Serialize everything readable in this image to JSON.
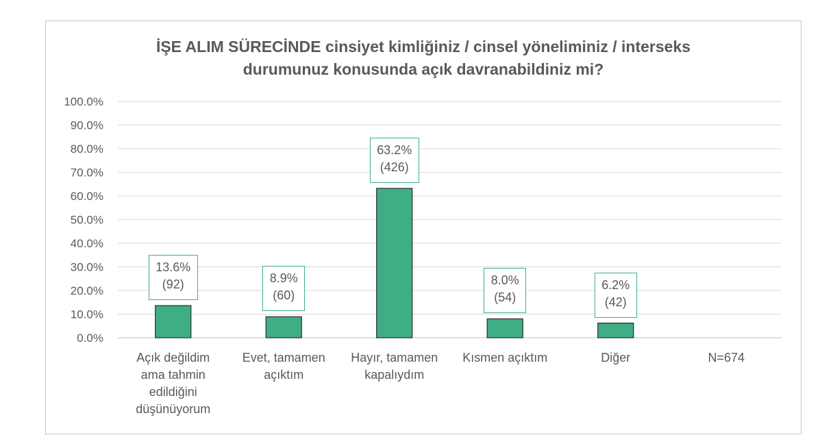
{
  "chart_data": {
    "type": "bar",
    "title_lines": [
      "İŞE ALIM SÜRECİNDE cinsiyet kimliğiniz / cinsel yöneliminiz / interseks",
      "durumunuz konusunda açık davranabildiniz mi?"
    ],
    "categories": [
      "Açık değildim ama tahmin edildiğini düşünüyorum",
      "Evet, tamamen açıktım",
      "Hayır, tamamen kapalıydım",
      "Kısmen açıktım",
      "Diğer",
      "N=674"
    ],
    "category_lines": [
      [
        "Açık değildim",
        "ama tahmin",
        "edildiğini",
        "düşünüyorum"
      ],
      [
        "Evet, tamamen",
        "açıktım"
      ],
      [
        "Hayır, tamamen",
        "kapalıydım"
      ],
      [
        "Kısmen açıktım"
      ],
      [
        "Diğer"
      ],
      [
        "N=674"
      ]
    ],
    "values": [
      13.6,
      8.9,
      63.2,
      8.0,
      6.2,
      null
    ],
    "value_labels": [
      "13.6%",
      "8.9%",
      "63.2%",
      "8.0%",
      "6.2%",
      null
    ],
    "count_labels": [
      "(92)",
      "(60)",
      "(426)",
      "(54)",
      "(42)",
      null
    ],
    "yticks": [
      "0.0%",
      "10.0%",
      "20.0%",
      "30.0%",
      "40.0%",
      "50.0%",
      "60.0%",
      "70.0%",
      "80.0%",
      "90.0%",
      "100.0%"
    ],
    "ylim": [
      0,
      100
    ],
    "grid": true,
    "colors": {
      "bar": "#3fae84",
      "bar_border": "#2a2a2a",
      "label_border": "#3fae84",
      "grid": "#d9d9d9",
      "text": "#595959"
    }
  }
}
